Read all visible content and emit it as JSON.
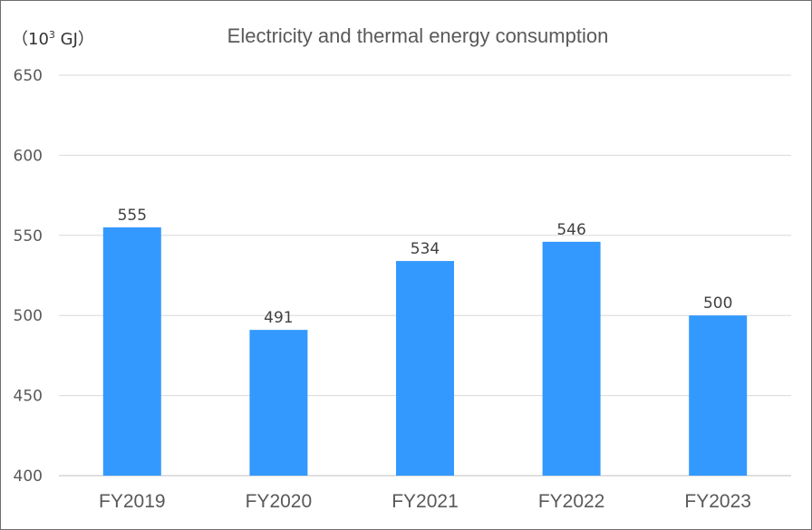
{
  "chart_data": {
    "type": "bar",
    "title": "Electricity and thermal energy consumption",
    "unit_label": {
      "prefix": "（10",
      "superscript": "3",
      "suffix": " GJ）"
    },
    "categories": [
      "FY2019",
      "FY2020",
      "FY2021",
      "FY2022",
      "FY2023"
    ],
    "values": [
      555,
      491,
      534,
      546,
      500
    ],
    "data_labels": [
      "555",
      "491",
      "534",
      "546",
      "500"
    ],
    "ylim": [
      400,
      650
    ],
    "yticks": [
      400,
      450,
      500,
      550,
      600,
      650
    ],
    "grid": true,
    "bar_color": "#3399FF",
    "xlabel": "",
    "ylabel": ""
  }
}
